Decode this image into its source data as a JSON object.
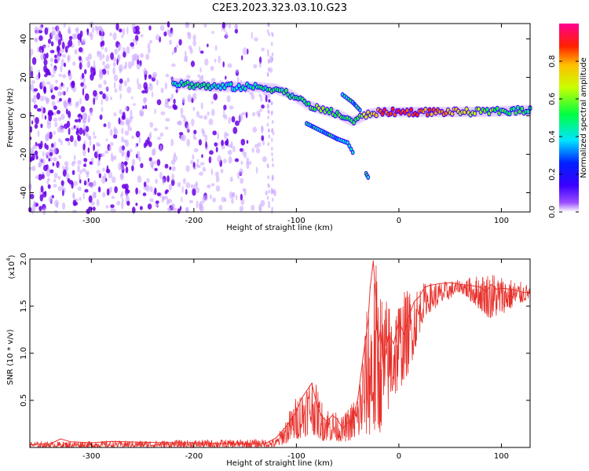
{
  "title": "C2E3.2023.323.03.10.G23",
  "chart_data": [
    {
      "type": "heatmap",
      "xlabel": "Height of straight line (km)",
      "ylabel": "Frequency (Hz)",
      "xlim": [
        -360,
        128
      ],
      "ylim": [
        -50,
        48
      ],
      "xticks": [
        -300,
        -200,
        -100,
        0,
        100
      ],
      "yticks": [
        -40,
        -20,
        0,
        20,
        40
      ],
      "colorbar": {
        "label": "Normalized spectral amplitude",
        "range": [
          0,
          1
        ],
        "ticks": [
          0.0,
          0.2,
          0.4,
          0.6,
          0.8
        ],
        "colors": [
          "#ffffff",
          "#7b00ff",
          "#0000ff",
          "#00e5ff",
          "#00ff00",
          "#ffff00",
          "#ff0000",
          "#ff0080"
        ]
      },
      "ridge": [
        {
          "x": -220,
          "y": 17,
          "amp": 0.45
        },
        {
          "x": -200,
          "y": 16,
          "amp": 0.5
        },
        {
          "x": -180,
          "y": 15,
          "amp": 0.45
        },
        {
          "x": -160,
          "y": 15,
          "amp": 0.4
        },
        {
          "x": -140,
          "y": 15,
          "amp": 0.45
        },
        {
          "x": -120,
          "y": 14,
          "amp": 0.5
        },
        {
          "x": -105,
          "y": 11,
          "amp": 0.5
        },
        {
          "x": -90,
          "y": 6,
          "amp": 0.55
        },
        {
          "x": -75,
          "y": 3,
          "amp": 0.6
        },
        {
          "x": -60,
          "y": 1,
          "amp": 0.55
        },
        {
          "x": -45,
          "y": -3,
          "amp": 0.5
        },
        {
          "x": -30,
          "y": 1,
          "amp": 0.7
        },
        {
          "x": -15,
          "y": 2,
          "amp": 0.85
        },
        {
          "x": 0,
          "y": 2,
          "amp": 0.9
        },
        {
          "x": 40,
          "y": 2,
          "amp": 0.8
        },
        {
          "x": 80,
          "y": 2,
          "amp": 0.6
        },
        {
          "x": 128,
          "y": 3,
          "amp": 0.5
        }
      ],
      "branches": [
        {
          "points": [
            [
              -90,
              -4
            ],
            [
              -75,
              -8
            ],
            [
              -60,
              -12
            ],
            [
              -50,
              -14
            ],
            [
              -45,
              -19
            ]
          ]
        },
        {
          "points": [
            [
              -55,
              11
            ],
            [
              -45,
              7
            ],
            [
              -38,
              3
            ]
          ]
        },
        {
          "points": [
            [
              -32,
              -30
            ],
            [
              -30,
              -32
            ]
          ]
        }
      ],
      "noise_region": {
        "xmin": -360,
        "xmax": -120,
        "ymin": -50,
        "ymax": 48
      }
    },
    {
      "type": "line",
      "xlabel": "Height of straight line (km)",
      "ylabel": "SNR (10 * v/v)",
      "y_multiplier_label": "(x10",
      "y_multiplier_exp": "4",
      "y_multiplier_close": ")",
      "xlim": [
        -360,
        128
      ],
      "ylim": [
        0,
        20000
      ],
      "xticks": [
        -300,
        -200,
        -100,
        0,
        100
      ],
      "yticks": [
        5000,
        10000,
        15000,
        20000
      ],
      "ytick_labels": [
        "0.5",
        "1.0",
        "1.5",
        "2.0"
      ],
      "color": "#e8302b",
      "x": [
        -360,
        -340,
        -330,
        -320,
        -300,
        -280,
        -250,
        -220,
        -200,
        -180,
        -150,
        -130,
        -120,
        -110,
        -100,
        -95,
        -90,
        -85,
        -80,
        -75,
        -70,
        -65,
        -60,
        -55,
        -50,
        -45,
        -40,
        -35,
        -30,
        -28,
        -25,
        -22,
        -20,
        -18,
        -15,
        -10,
        -5,
        0,
        5,
        10,
        15,
        20,
        25,
        30,
        40,
        50,
        60,
        70,
        80,
        85,
        90,
        95,
        100,
        110,
        120,
        128
      ],
      "y": [
        300,
        400,
        900,
        600,
        500,
        650,
        550,
        500,
        500,
        450,
        400,
        420,
        1000,
        2200,
        3800,
        5200,
        6000,
        6800,
        4500,
        3200,
        2800,
        3400,
        3000,
        2000,
        2600,
        3000,
        5200,
        9500,
        13500,
        17000,
        19800,
        15000,
        11000,
        12500,
        8500,
        12000,
        11000,
        13500,
        12000,
        14000,
        15500,
        16000,
        17000,
        17200,
        17400,
        17500,
        17300,
        17200,
        17000,
        16500,
        17300,
        16800,
        16900,
        16800,
        16500,
        16400
      ],
      "envelope": [
        {
          "x": -360,
          "lo": 0,
          "hi": 600
        },
        {
          "x": -120,
          "lo": 0,
          "hi": 900
        },
        {
          "x": -100,
          "lo": 800,
          "hi": 5500
        },
        {
          "x": -85,
          "lo": 1500,
          "hi": 8000
        },
        {
          "x": -75,
          "lo": 700,
          "hi": 5000
        },
        {
          "x": -55,
          "lo": 600,
          "hi": 3200
        },
        {
          "x": -40,
          "lo": 800,
          "hi": 6000
        },
        {
          "x": -30,
          "lo": 1200,
          "hi": 16000
        },
        {
          "x": -22,
          "lo": 500,
          "hi": 20000
        },
        {
          "x": -15,
          "lo": 2500,
          "hi": 16000
        },
        {
          "x": -5,
          "lo": 5000,
          "hi": 16000
        },
        {
          "x": 10,
          "lo": 8000,
          "hi": 17000
        },
        {
          "x": 25,
          "lo": 14000,
          "hi": 17500
        },
        {
          "x": 60,
          "lo": 16500,
          "hi": 17800
        },
        {
          "x": 90,
          "lo": 13500,
          "hi": 18800
        },
        {
          "x": 128,
          "lo": 15800,
          "hi": 17200
        }
      ]
    }
  ]
}
